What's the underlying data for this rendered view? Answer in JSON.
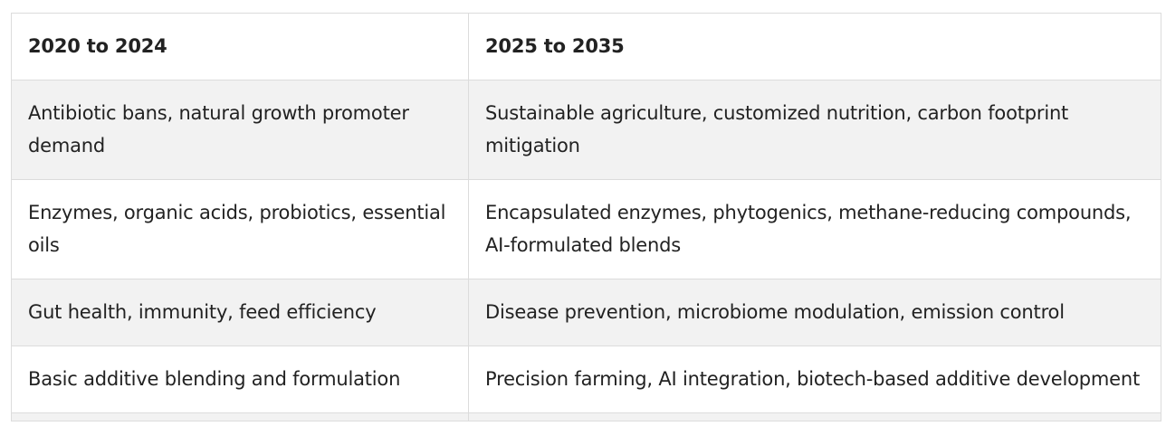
{
  "table": {
    "headers": [
      "2020 to 2024",
      "2025 to 2035"
    ],
    "rows": [
      [
        "Antibiotic bans, natural growth promoter demand",
        "Sustainable agriculture, customized nutrition, carbon footprint mitigation"
      ],
      [
        "Enzymes, organic acids, probiotics, essential oils",
        "Encapsulated enzymes, phytogenics, methane-reducing compounds, AI-formulated blends"
      ],
      [
        "Gut health, immunity, feed efficiency",
        "Disease prevention, microbiome modulation, emission control"
      ],
      [
        "Basic additive blending and formulation",
        "Precision farming, AI integration, biotech-based additive development"
      ]
    ]
  }
}
